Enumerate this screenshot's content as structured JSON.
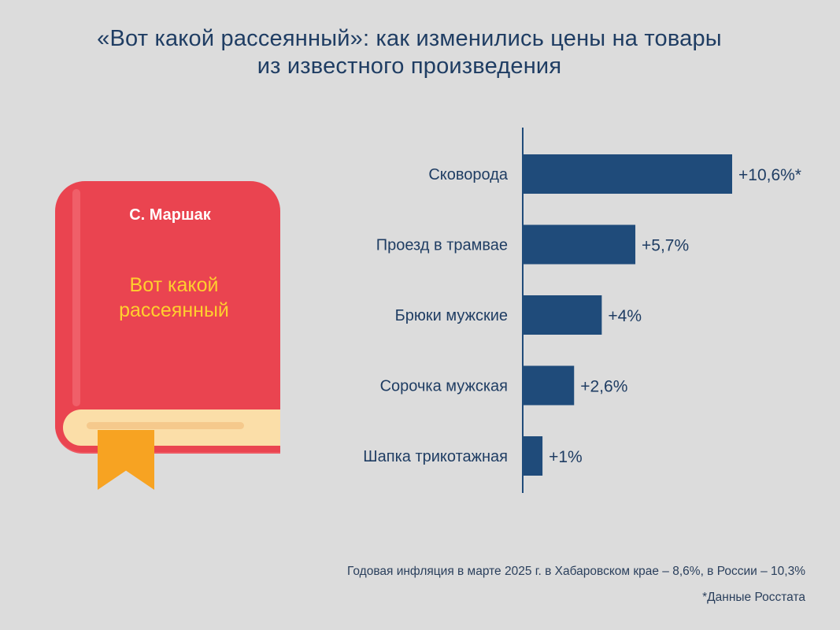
{
  "title": {
    "line1": "«Вот какой рассеянный»: как изменились цены на товары",
    "line2": "из известного произведения"
  },
  "book": {
    "author": "С. Маршак",
    "title_line1": "Вот какой",
    "title_line2": "рассеянный"
  },
  "colors": {
    "background": "#dcdcdc",
    "bar": "#1f4b7a",
    "text": "#1f3d63",
    "book_cover": "#ea4450",
    "book_title": "#ffcf2e",
    "bookmark": "#f7a322"
  },
  "chart_data": {
    "type": "bar",
    "orientation": "horizontal",
    "categories": [
      "Сковорода",
      "Проезд в трамвае",
      "Брюки мужские",
      "Сорочка мужская",
      "Шапка трикотажная"
    ],
    "values": [
      10.6,
      5.7,
      4,
      2.6,
      1
    ],
    "value_labels": [
      "+10,6%*",
      "+5,7%",
      "+4%",
      "+2,6%",
      "+1%"
    ],
    "title": "",
    "xlabel": "",
    "ylabel": "",
    "xlim": [
      0,
      10.6
    ],
    "grid": false,
    "legend": "none"
  },
  "footnotes": {
    "inflation": "Годовая инфляция в марте 2025 г. в Хабаровском крае – 8,6%, в России – 10,3%",
    "source": "*Данные Росстата"
  }
}
